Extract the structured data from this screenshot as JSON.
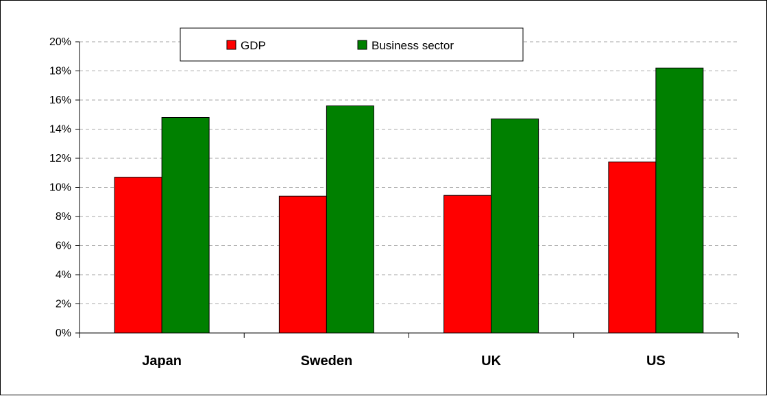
{
  "chart_data": {
    "type": "bar",
    "categories": [
      "Japan",
      "Sweden",
      "UK",
      "US"
    ],
    "series": [
      {
        "name": "GDP",
        "color": "#ff0000",
        "values": [
          10.7,
          9.4,
          9.45,
          11.75
        ]
      },
      {
        "name": "Business sector",
        "color": "#008000",
        "values": [
          14.8,
          15.6,
          14.7,
          18.2
        ]
      }
    ],
    "y_ticks": [
      "0%",
      "2%",
      "4%",
      "6%",
      "8%",
      "10%",
      "12%",
      "14%",
      "16%",
      "18%",
      "20%"
    ],
    "ylim": [
      0,
      20
    ],
    "y_unit": "%",
    "grid": "horizontal dashed",
    "legend_position": "top-center"
  }
}
